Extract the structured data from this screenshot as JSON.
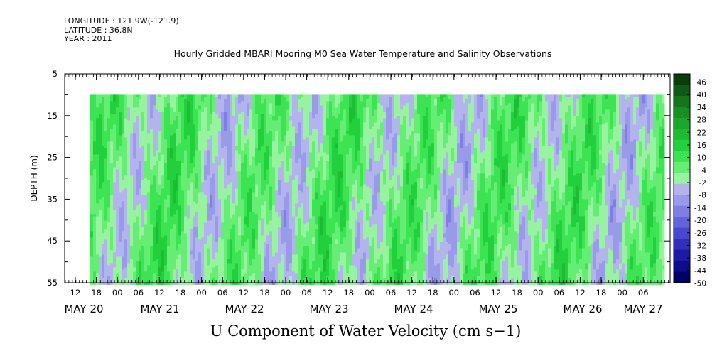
{
  "header": {
    "longitude": "LONGITUDE : 121.9W(-121.9)",
    "latitude": "LATITUDE : 36.8N",
    "year": "YEAR : 2011"
  },
  "chart_data": {
    "type": "heatmap",
    "title": "Hourly Gridded MBARI Mooring M0 Sea Water Temperature and Salinity Observations",
    "xlabel": "U Component of Water Velocity (cm s−1)",
    "ylabel": "DEPTH (m)",
    "y_ticks": [
      "5",
      "15",
      "25",
      "35",
      "45",
      "55"
    ],
    "ylim": [
      5,
      55
    ],
    "y_inverted": true,
    "data_depth_range": [
      10,
      55
    ],
    "data_time_start": "May 20 15:00",
    "x_hour_ticks": [
      "12",
      "18",
      "00",
      "06",
      "12",
      "18",
      "00",
      "06",
      "12",
      "18",
      "00",
      "06",
      "12",
      "18",
      "00",
      "06",
      "12",
      "18",
      "00",
      "06",
      "12",
      "18",
      "00",
      "06",
      "12",
      "18",
      "00",
      "06"
    ],
    "x_date_labels": [
      "MAY 20",
      "MAY 21",
      "MAY 22",
      "MAY 23",
      "MAY 24",
      "MAY 25",
      "MAY 26",
      "MAY 27"
    ],
    "colorbar": {
      "labels": [
        "46",
        "40",
        "34",
        "28",
        "22",
        "16",
        "10",
        "4",
        "-2",
        "-8",
        "-14",
        "-20",
        "-26",
        "-32",
        "-38",
        "-44",
        "-50"
      ],
      "range": [
        -50,
        52
      ],
      "colors": [
        "#0a3d0a",
        "#0f5a14",
        "#13751c",
        "#168f23",
        "#1aa72a",
        "#1dbd33",
        "#22cf3d",
        "#3ce352",
        "#66ee74",
        "#98f3a0",
        "#b3b3ee",
        "#9a9aea",
        "#7f7fe3",
        "#6363da",
        "#4848cf",
        "#3030bd",
        "#1b1ba6",
        "#0d0d8a",
        "#000066"
      ]
    }
  }
}
